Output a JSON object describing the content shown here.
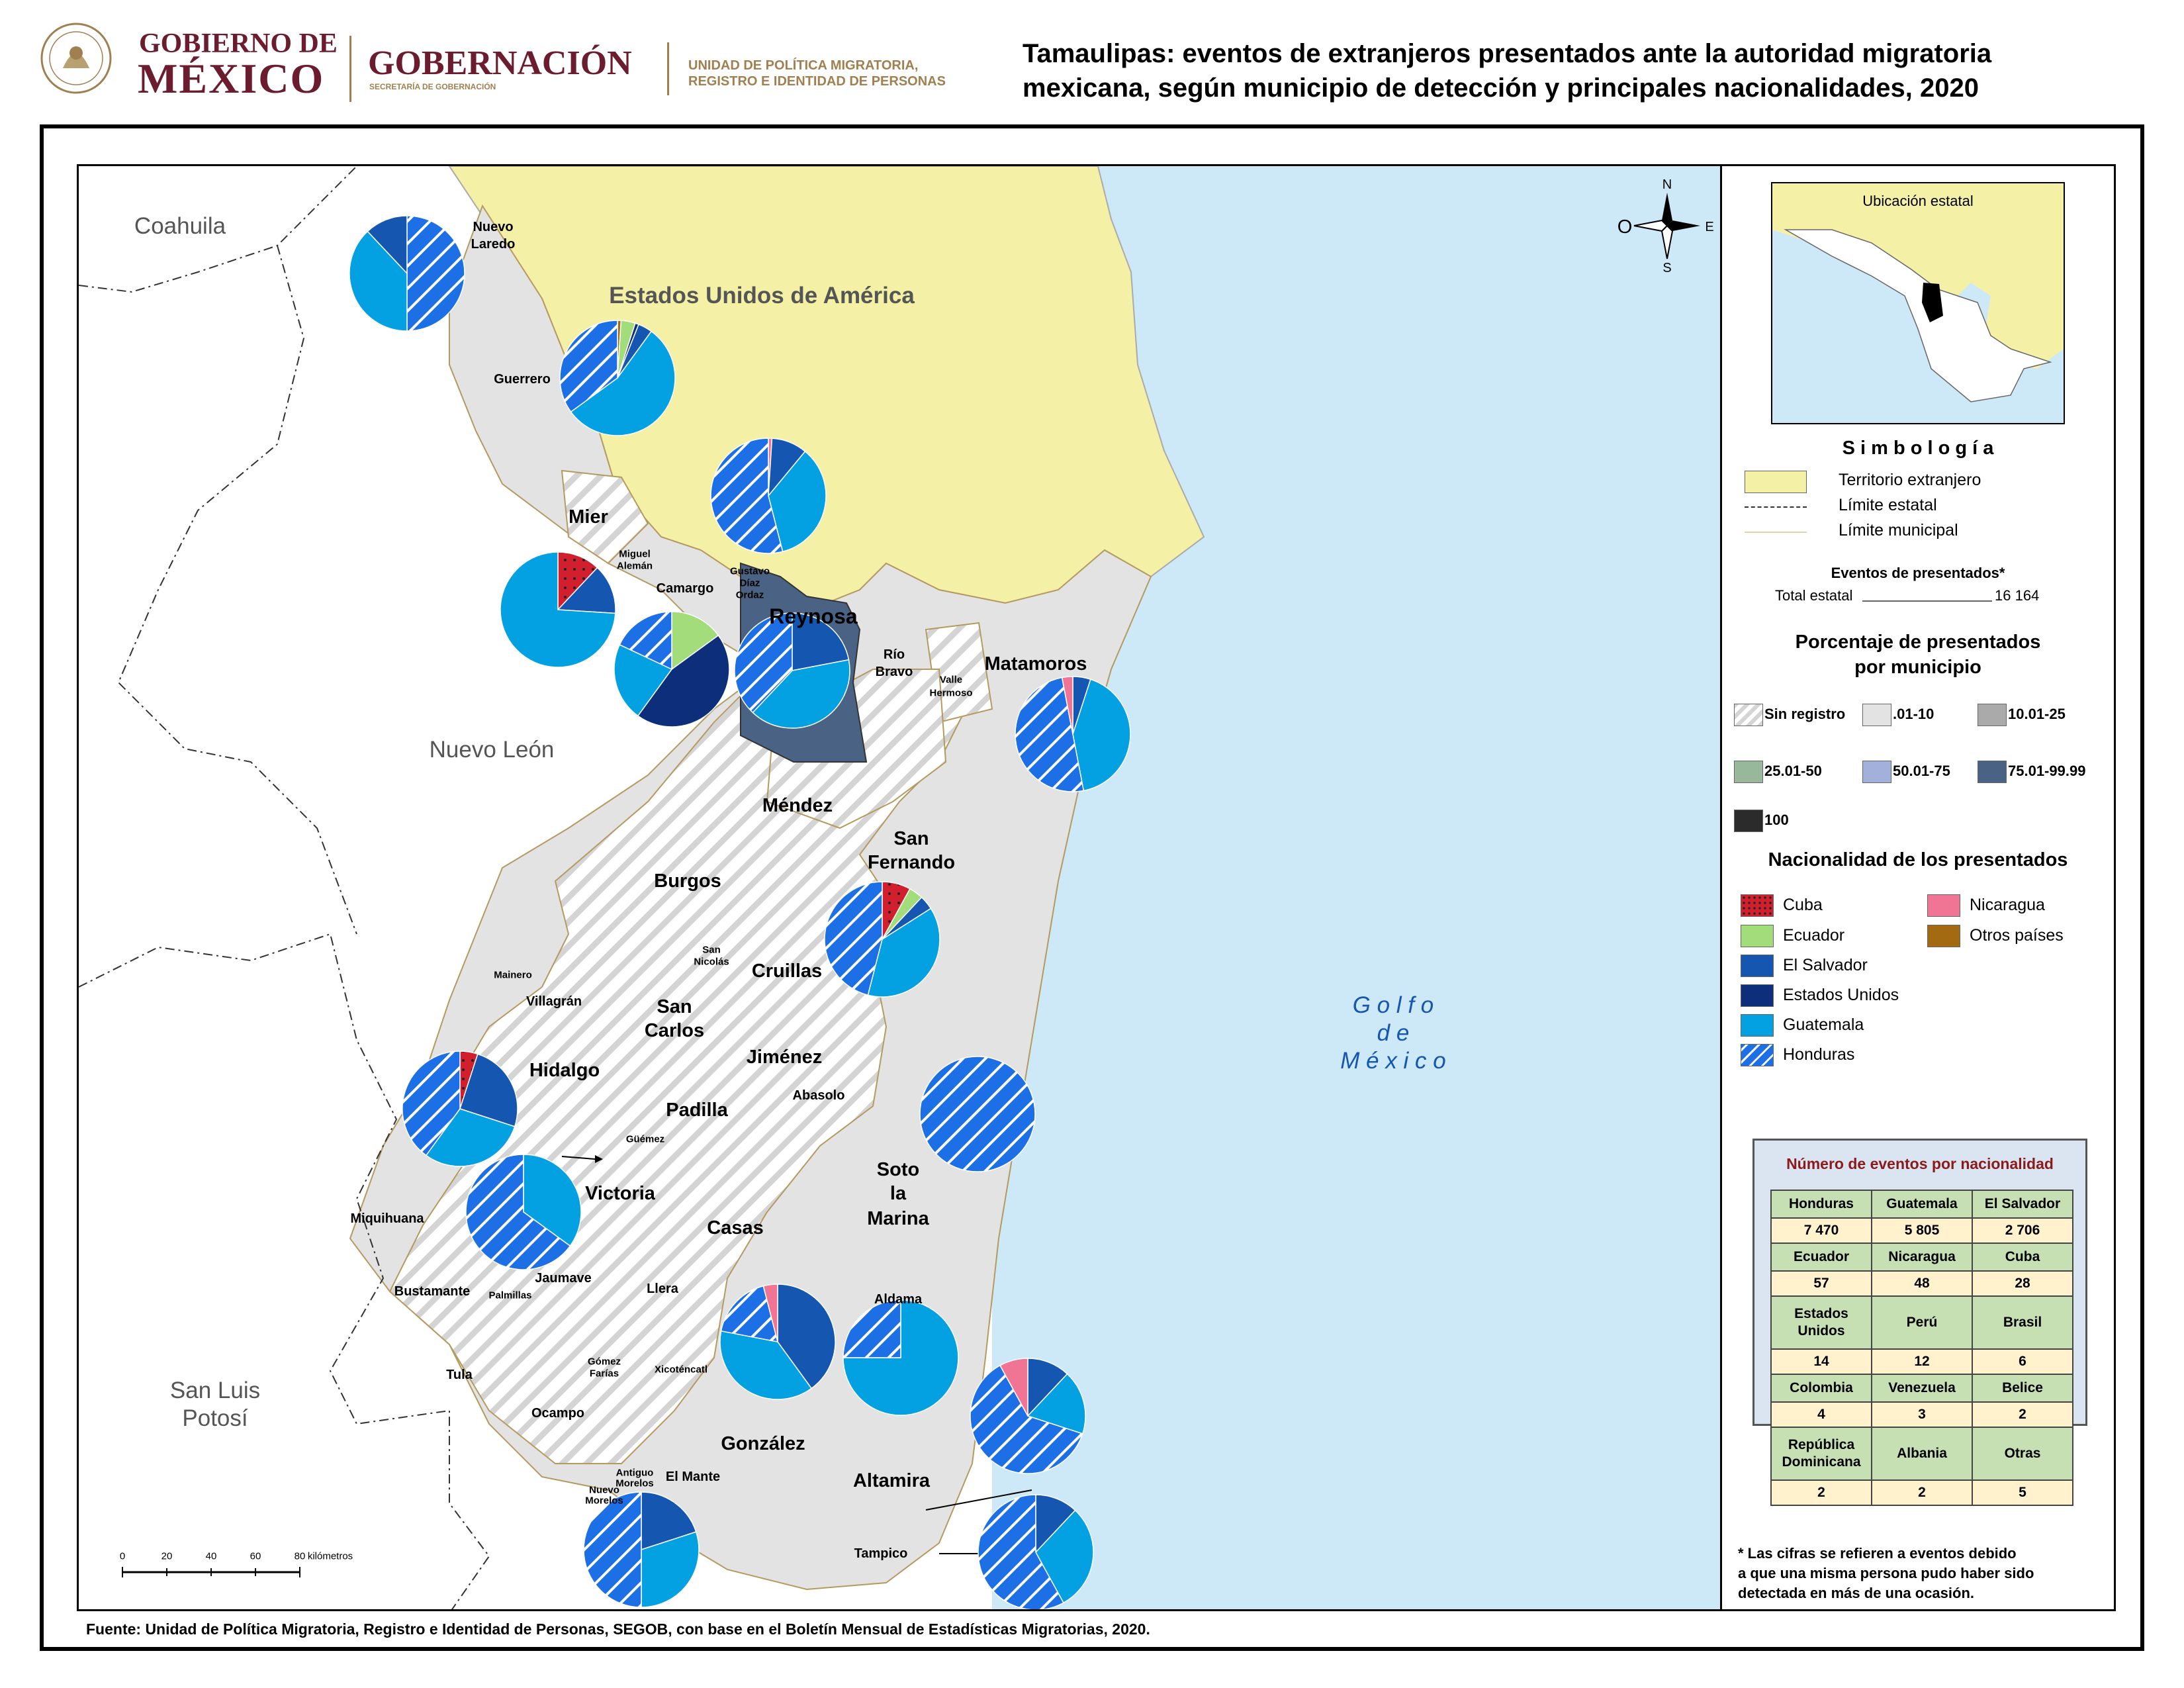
{
  "header": {
    "gob_line1": "GOBIERNO DE",
    "gob_line2": "MÉXICO",
    "gobernacion": "GOBERNACIÓN",
    "gobernacion_sub": "SECRETARÍA DE GOBERNACIÓN",
    "unit_line1": "UNIDAD DE POLÍTICA MIGRATORIA,",
    "unit_line2": "REGISTRO E IDENTIDAD DE PERSONAS",
    "title_line1": "Tamaulipas: eventos de extranjeros presentados ante la autoridad migratoria",
    "title_line2": "mexicana, según municipio de detección y principales nacionalidades, 2020"
  },
  "map": {
    "states": {
      "coahuila": "Coahuila",
      "usa": "Estados Unidos de América",
      "nuevo_leon": "Nuevo León",
      "san_luis_1": "San Luis",
      "san_luis_2": "Potosí",
      "golfo_1": "G o l f o",
      "golfo_2": "d e",
      "golfo_3": "M é x i c o"
    },
    "municipalities": {
      "nuevo_laredo_1": "Nuevo",
      "nuevo_laredo_2": "Laredo",
      "guerrero": "Guerrero",
      "mier": "Mier",
      "miguel_aleman_1": "Miguel",
      "miguel_aleman_2": "Alemán",
      "camargo": "Camargo",
      "gustavo_1": "Gustavo",
      "gustavo_2": "Díaz",
      "gustavo_3": "Ordaz",
      "reynosa": "Reynosa",
      "rio_bravo_1": "Río",
      "rio_bravo_2": "Bravo",
      "valle_1": "Valle",
      "valle_2": "Hermoso",
      "matamoros": "Matamoros",
      "mendez": "Méndez",
      "san_fernando_1": "San",
      "san_fernando_2": "Fernando",
      "burgos": "Burgos",
      "san_nicolas_1": "San",
      "san_nicolas_2": "Nicolás",
      "cruillas": "Cruillas",
      "mainero": "Mainero",
      "villagran": "Villagrán",
      "san_carlos_1": "San",
      "san_carlos_2": "Carlos",
      "jimenez": "Jiménez",
      "hidalgo": "Hidalgo",
      "abasolo": "Abasolo",
      "padilla": "Padilla",
      "guemez": "Güémez",
      "victoria": "Victoria",
      "soto_1": "Soto",
      "soto_2": "la",
      "soto_3": "Marina",
      "miquihuana": "Miquihuana",
      "casas": "Casas",
      "bustamante": "Bustamante",
      "jaumave": "Jaumave",
      "palmillas": "Palmillas",
      "llera": "Llera",
      "aldama": "Aldama",
      "tula": "Tula",
      "gomez_1": "Gómez",
      "gomez_2": "Farías",
      "xicotencatl": "Xicoténcatl",
      "ocampo": "Ocampo",
      "gonzalez": "González",
      "antiguo_1": "Antiguo",
      "antiguo_2": "Morelos",
      "nuevo_morelos_1": "Nuevo",
      "nuevo_morelos_2": "Morelos",
      "el_mante": "El Mante",
      "altamira": "Altamira",
      "tampico": "Tampico"
    },
    "compass": {
      "n": "N",
      "s": "S",
      "e": "E",
      "w": "O"
    },
    "scale": {
      "t0": "0",
      "t1": "20",
      "t2": "40",
      "t3": "60",
      "t4": "80",
      "unit": "kilómetros"
    }
  },
  "legend": {
    "inset_title": "Ubicación estatal",
    "simbologia": "S i m b o l o g í a",
    "territorio": "Territorio extranjero",
    "limite_estatal": "Límite estatal",
    "limite_municipal": "Límite municipal",
    "eventos_title": "Eventos de presentados*",
    "total_label": "Total estatal",
    "total_value": "16 164",
    "pct_title_1": "Porcentaje de presentados",
    "pct_title_2": "por municipio",
    "pct_classes": [
      {
        "label": "Sin registro",
        "color": "hatch"
      },
      {
        "label": ".01-10",
        "color": "#e3e3e3"
      },
      {
        "label": "10.01-25",
        "color": "#aaaaaa"
      },
      {
        "label": "25.01-50",
        "color": "#98b89c"
      },
      {
        "label": "50.01-75",
        "color": "#a4b0dc"
      },
      {
        "label": "75.01-99.99",
        "color": "#4a6384"
      },
      {
        "label": "100",
        "color": "#2b2b2b"
      }
    ],
    "nat_title": "Nacionalidad de los presentados",
    "nationalities": [
      {
        "label": "Cuba",
        "color": "#d11f2e"
      },
      {
        "label": "Ecuador",
        "color": "#a3dc7b"
      },
      {
        "label": "El Salvador",
        "color": "#1456b0"
      },
      {
        "label": "Estados Unidos",
        "color": "#0d2e7a"
      },
      {
        "label": "Guatemala",
        "color": "#03a1e1"
      },
      {
        "label": "Honduras",
        "color": "#1d6fe6"
      },
      {
        "label": "Nicaragua",
        "color": "#f07595"
      },
      {
        "label": "Otros países",
        "color": "#a46a12"
      }
    ]
  },
  "count_table": {
    "title": "Número de eventos por nacionalidad",
    "rows": [
      {
        "h": [
          "Honduras",
          "Guatemala",
          "El Salvador"
        ],
        "v": [
          "7 470",
          "5 805",
          "2 706"
        ]
      },
      {
        "h": [
          "Ecuador",
          "Nicaragua",
          "Cuba"
        ],
        "v": [
          "57",
          "48",
          "28"
        ]
      },
      {
        "h": [
          "Estados Unidos",
          "Perú",
          "Brasil"
        ],
        "v": [
          "14",
          "12",
          "6"
        ],
        "tall": true
      },
      {
        "h": [
          "Colombia",
          "Venezuela",
          "Belice"
        ],
        "v": [
          "4",
          "3",
          "2"
        ]
      },
      {
        "h": [
          "República Dominicana",
          "Albania",
          "Otras"
        ],
        "v": [
          "2",
          "2",
          "5"
        ],
        "tall": true
      }
    ]
  },
  "footnote_1": "* Las cifras se refieren a eventos debido",
  "footnote_2": "a que una misma persona pudo haber sido",
  "footnote_3": "detectada en más de una ocasión.",
  "source": "Fuente: Unidad de Política Migratoria, Registro e Identidad de Personas, SEGOB, con base en el Boletín Mensual de Estadísticas Migratorias, 2020.",
  "pie_charts": [
    {
      "municipality": "Nuevo Laredo",
      "slices": {
        "Honduras": 50,
        "Guatemala": 38,
        "El Salvador": 12
      }
    },
    {
      "municipality": "Guerrero",
      "slices": {
        "Otros países": 1,
        "Ecuador": 4,
        "Estados Unidos": 1,
        "El Salvador": 4,
        "Guatemala": 55,
        "Honduras": 35
      }
    },
    {
      "municipality": "Camargo",
      "slices": {
        "Nicaragua": 1,
        "El Salvador": 10,
        "Guatemala": 35,
        "Honduras": 54
      }
    },
    {
      "municipality": "Miguel Alemán",
      "slices": {
        "Cuba": 12,
        "El Salvador": 14,
        "Guatemala": 74
      }
    },
    {
      "municipality": "Gustavo Díaz Ordaz",
      "slices": {
        "Ecuador": 15,
        "Estados Unidos": 45,
        "Guatemala": 22,
        "Honduras": 18
      }
    },
    {
      "municipality": "Reynosa",
      "slices": {
        "El Salvador": 22,
        "Guatemala": 40,
        "Honduras": 38
      }
    },
    {
      "municipality": "Matamoros",
      "slices": {
        "El Salvador": 5,
        "Guatemala": 42,
        "Honduras": 50,
        "Nicaragua": 3
      }
    },
    {
      "municipality": "San Fernando",
      "slices": {
        "Cuba": 8,
        "Ecuador": 4,
        "El Salvador": 4,
        "Guatemala": 38,
        "Honduras": 46
      }
    },
    {
      "municipality": "Hidalgo",
      "slices": {
        "Cuba": 5,
        "El Salvador": 25,
        "Guatemala": 30,
        "Honduras": 40
      }
    },
    {
      "municipality": "Victoria",
      "slices": {
        "Guatemala": 35,
        "Honduras": 65
      }
    },
    {
      "municipality": "Soto la Marina",
      "slices": {
        "Honduras": 100
      }
    },
    {
      "municipality": "Llera",
      "slices": {
        "El Salvador": 40,
        "Guatemala": 38,
        "Honduras": 18,
        "Nicaragua": 4
      }
    },
    {
      "municipality": "Aldama",
      "slices": {
        "Guatemala": 75,
        "Honduras": 25
      }
    },
    {
      "municipality": "Altamira",
      "slices": {
        "El Salvador": 12,
        "Guatemala": 18,
        "Honduras": 62,
        "Nicaragua": 8
      }
    },
    {
      "municipality": "El Mante",
      "slices": {
        "El Salvador": 20,
        "Guatemala": 30,
        "Honduras": 50
      }
    },
    {
      "municipality": "Tampico",
      "slices": {
        "El Salvador": 12,
        "Guatemala": 30,
        "Honduras": 58
      }
    }
  ]
}
